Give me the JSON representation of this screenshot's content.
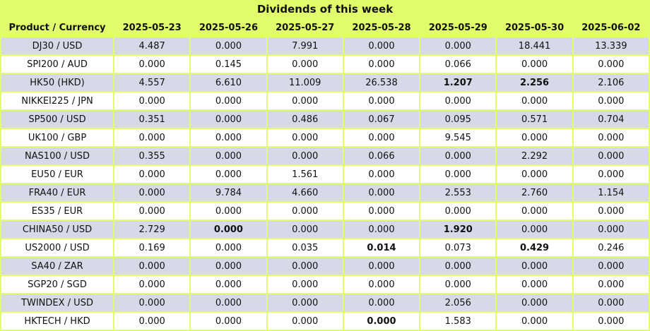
{
  "title": "Dividends of this week",
  "headers": [
    "Product / Currency",
    "2025-05-23",
    "2025-05-26",
    "2025-05-27",
    "2025-05-28",
    "2025-05-29",
    "2025-05-30",
    "2025-06-02"
  ],
  "rows": [
    {
      "product": "DJ30 / USD",
      "values": [
        "4.487",
        "0.000",
        "7.991",
        "0.000",
        "0.000",
        "18.441",
        "13.339"
      ],
      "bold": []
    },
    {
      "product": "SPI200 / AUD",
      "values": [
        "0.000",
        "0.145",
        "0.000",
        "0.000",
        "0.066",
        "0.000",
        "0.000"
      ],
      "bold": []
    },
    {
      "product": "HK50 (HKD)",
      "values": [
        "4.557",
        "6.610",
        "11.009",
        "26.538",
        "1.207",
        "2.256",
        "2.106"
      ],
      "bold": [
        4,
        5
      ]
    },
    {
      "product": "NIKKEI225 / JPN",
      "values": [
        "0.000",
        "0.000",
        "0.000",
        "0.000",
        "0.000",
        "0.000",
        "0.000"
      ],
      "bold": []
    },
    {
      "product": "SP500 / USD",
      "values": [
        "0.351",
        "0.000",
        "0.486",
        "0.067",
        "0.095",
        "0.571",
        "0.704"
      ],
      "bold": []
    },
    {
      "product": "UK100 / GBP",
      "values": [
        "0.000",
        "0.000",
        "0.000",
        "0.000",
        "9.545",
        "0.000",
        "0.000"
      ],
      "bold": []
    },
    {
      "product": "NAS100 / USD",
      "values": [
        "0.355",
        "0.000",
        "0.000",
        "0.066",
        "0.000",
        "2.292",
        "0.000"
      ],
      "bold": []
    },
    {
      "product": "EU50 / EUR",
      "values": [
        "0.000",
        "0.000",
        "1.561",
        "0.000",
        "0.000",
        "0.000",
        "0.000"
      ],
      "bold": []
    },
    {
      "product": "FRA40 / EUR",
      "values": [
        "0.000",
        "9.784",
        "4.660",
        "0.000",
        "2.553",
        "2.760",
        "1.154"
      ],
      "bold": []
    },
    {
      "product": "ES35 / EUR",
      "values": [
        "0.000",
        "0.000",
        "0.000",
        "0.000",
        "0.000",
        "0.000",
        "0.000"
      ],
      "bold": []
    },
    {
      "product": "CHINA50 / USD",
      "values": [
        "2.729",
        "0.000",
        "0.000",
        "0.000",
        "1.920",
        "0.000",
        "0.000"
      ],
      "bold": [
        1,
        4
      ]
    },
    {
      "product": "US2000 / USD",
      "values": [
        "0.169",
        "0.000",
        "0.035",
        "0.014",
        "0.073",
        "0.429",
        "0.246"
      ],
      "bold": [
        3,
        5
      ]
    },
    {
      "product": "SA40 / ZAR",
      "values": [
        "0.000",
        "0.000",
        "0.000",
        "0.000",
        "0.000",
        "0.000",
        "0.000"
      ],
      "bold": []
    },
    {
      "product": "SGP20 / SGD",
      "values": [
        "0.000",
        "0.000",
        "0.000",
        "0.000",
        "0.000",
        "0.000",
        "0.000"
      ],
      "bold": []
    },
    {
      "product": "TWINDEX / USD",
      "values": [
        "0.000",
        "0.000",
        "0.000",
        "0.000",
        "2.056",
        "0.000",
        "0.000"
      ],
      "bold": []
    },
    {
      "product": "HKTECH / HKD",
      "values": [
        "0.000",
        "0.000",
        "0.000",
        "0.000",
        "1.583",
        "0.000",
        "0.000"
      ],
      "bold": [
        3
      ]
    }
  ],
  "colors": {
    "header_bg": "#e2fd6c",
    "row_odd_bg": "#d6d9e8",
    "row_even_bg": "#ffffff"
  }
}
